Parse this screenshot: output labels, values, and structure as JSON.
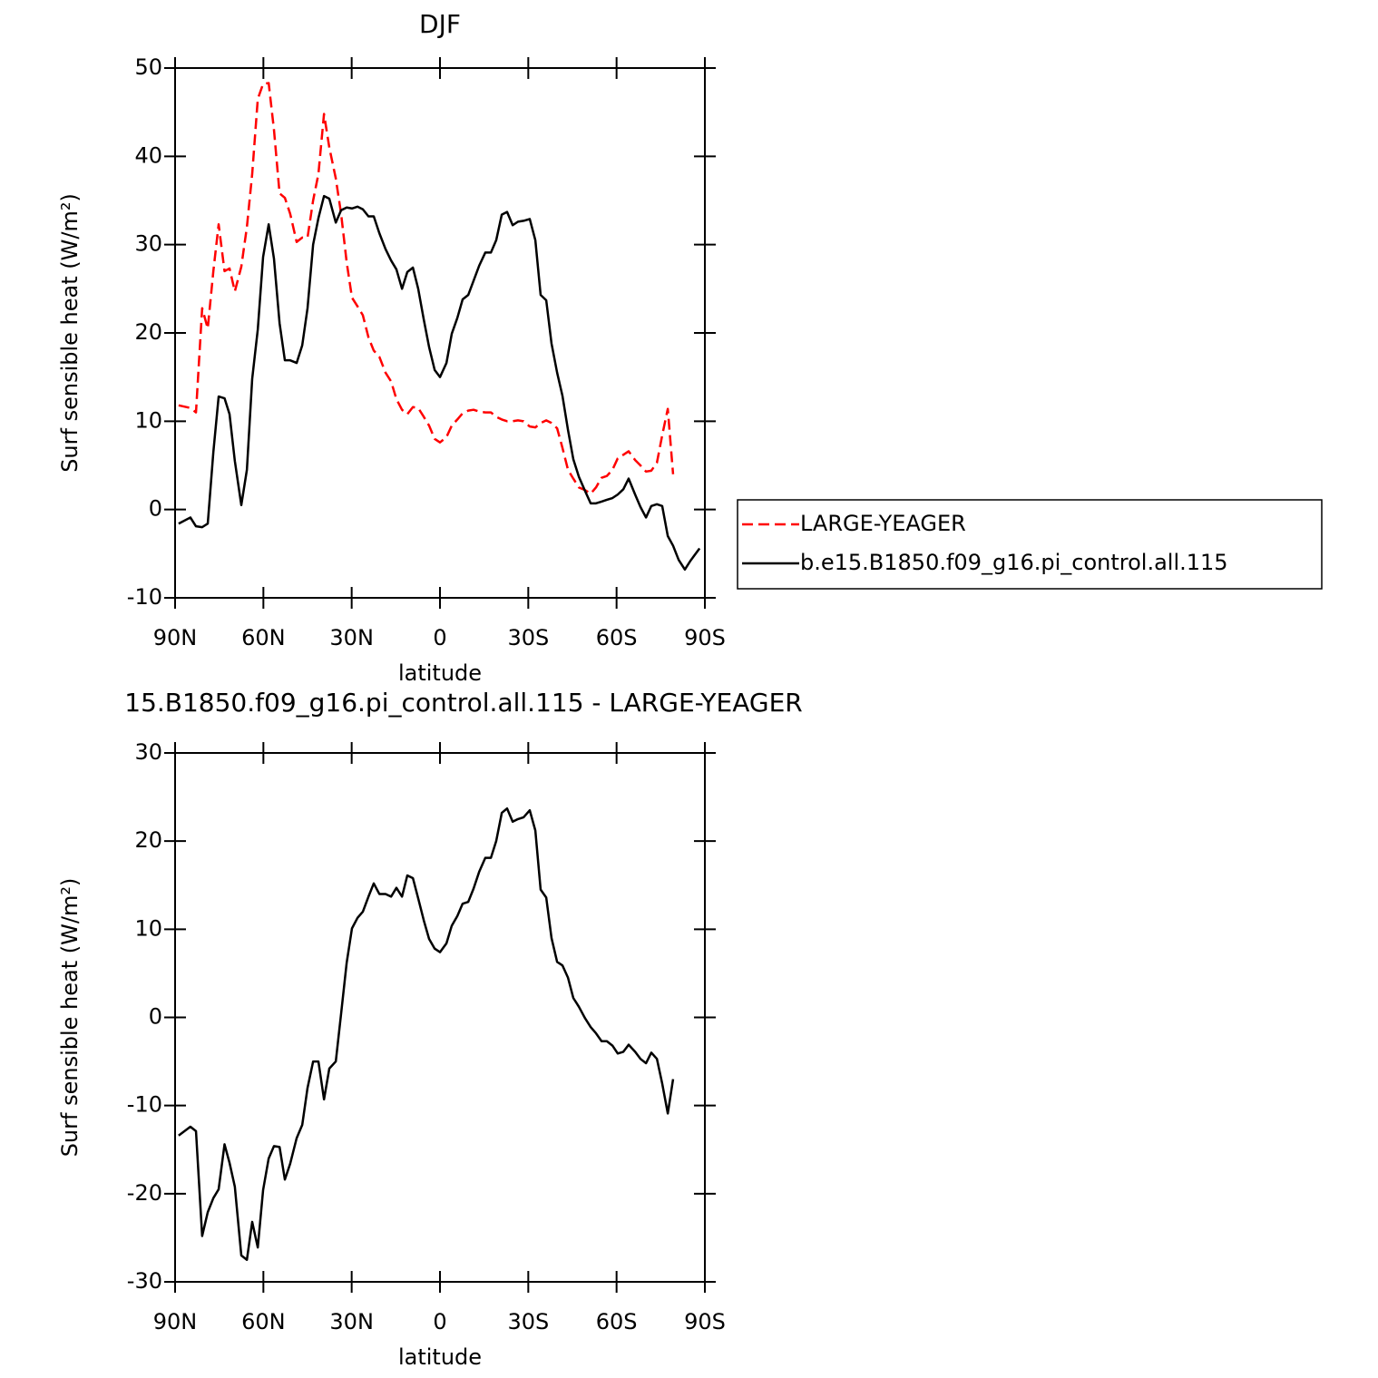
{
  "chart_data": [
    {
      "type": "line",
      "title": "DJF",
      "xlabel": "latitude",
      "ylabel": "Surf sensible heat (W/m²)",
      "x": [
        88.8,
        84.8,
        82.9,
        80.8,
        78.9,
        77,
        75.2,
        73.2,
        71.5,
        69.7,
        67.5,
        65.6,
        63.8,
        61.9,
        60.1,
        58.2,
        56.4,
        54.5,
        52.7,
        50.9,
        48.7,
        46.8,
        45,
        43.1,
        41.3,
        39.4,
        37.6,
        35.4,
        33.6,
        31.7,
        29.9,
        28,
        26.2,
        24.3,
        22.5,
        20.6,
        18.5,
        16.6,
        14.8,
        12.9,
        11.1,
        9.2,
        7.4,
        5.5,
        3.7,
        1.8,
        0,
        -2.2,
        -4,
        -5.9,
        -7.7,
        -9.6,
        -11.4,
        -13.3,
        -15.4,
        -17.3,
        -19.1,
        -21,
        -22.8,
        -24.7,
        -26.5,
        -28.4,
        -30.5,
        -32.4,
        -34.2,
        -36.1,
        -37.9,
        -39.8,
        -41.6,
        -43.5,
        -45.3,
        -47.2,
        -49.3,
        -51.2,
        -53,
        -54.9,
        -56.7,
        -58.6,
        -60.4,
        -62.3,
        -64.1,
        -66.3,
        -68.1,
        -70,
        -71.8,
        -73.7,
        -75.5,
        -77.4,
        -79.2,
        -81.1,
        -83.2,
        -85.1,
        -88.2
      ],
      "xlim": [
        90,
        -90
      ],
      "xticks": [
        {
          "value": 90,
          "label": "90N"
        },
        {
          "value": 60,
          "label": "60N"
        },
        {
          "value": 30,
          "label": "30N"
        },
        0,
        {
          "value": -30,
          "label": "30S"
        },
        {
          "value": -60,
          "label": "60S"
        },
        {
          "value": -90,
          "label": "90S"
        }
      ],
      "ylim": [
        -10,
        50
      ],
      "yticks": [
        -10,
        0,
        10,
        20,
        30,
        40,
        50
      ],
      "legend": "right",
      "series": [
        {
          "name": "LARGE-YEAGER",
          "color": "#ff0000",
          "style": "dashed",
          "values": [
            11.8,
            11.5,
            11.0,
            22.8,
            20.5,
            27,
            32.3,
            27,
            27.3,
            24.7,
            27.5,
            32,
            38,
            46.5,
            48.2,
            48.3,
            43,
            35.8,
            35.3,
            33.5,
            30.3,
            30.8,
            30.8,
            35,
            38,
            44.8,
            41,
            37.5,
            33.5,
            28,
            24,
            23,
            22,
            19.5,
            18,
            17.3,
            15.5,
            14.5,
            12.5,
            11.3,
            10.8,
            11.6,
            11.5,
            10.5,
            9.5,
            8,
            7.6,
            8.2,
            9.5,
            10.2,
            10.9,
            11.2,
            11.3,
            11.1,
            11.0,
            11.0,
            10.5,
            10.2,
            10.0,
            10.0,
            10.1,
            10.0,
            9.4,
            9.3,
            9.8,
            10.1,
            9.8,
            9.2,
            7.0,
            4.5,
            3.5,
            2.5,
            2.2,
            1.8,
            2.5,
            3.6,
            3.8,
            4.5,
            5.8,
            6.2,
            6.6,
            5.6,
            5.0,
            4.3,
            4.4,
            5.3,
            8.4,
            11.4,
            4.0,
            null,
            null,
            null,
            null
          ]
        },
        {
          "name": "b.e15.B1850.f09_g16.pi_control.all.115",
          "color": "#000000",
          "style": "solid",
          "values": [
            -1.6,
            -0.9,
            -1.9,
            -2.0,
            -1.6,
            6.5,
            12.8,
            12.6,
            10.8,
            5.5,
            0.5,
            4.5,
            14.8,
            20.4,
            28.6,
            32.3,
            28.4,
            21.1,
            16.9,
            16.9,
            16.6,
            18.6,
            22.8,
            30.0,
            33.0,
            35.5,
            35.2,
            32.5,
            33.9,
            34.2,
            34.1,
            34.3,
            34.0,
            33.2,
            33.2,
            31.3,
            29.5,
            28.2,
            27.2,
            25.0,
            26.9,
            27.4,
            25.0,
            21.5,
            18.4,
            15.8,
            15.0,
            16.6,
            19.9,
            21.7,
            23.8,
            24.3,
            25.9,
            27.6,
            29.1,
            29.1,
            30.5,
            33.4,
            33.7,
            32.2,
            32.6,
            32.7,
            32.9,
            30.5,
            24.3,
            23.7,
            18.8,
            15.5,
            12.9,
            9.0,
            5.7,
            3.7,
            2.1,
            0.7,
            0.7,
            0.9,
            1.1,
            1.3,
            1.7,
            2.3,
            3.5,
            1.7,
            0.3,
            -0.9,
            0.4,
            0.6,
            0.4,
            -3.0,
            -4.1,
            -5.7,
            -6.8,
            -5.8,
            -4.4
          ]
        }
      ]
    },
    {
      "type": "line",
      "title": "15.B1850.f09_g16.pi_control.all.115 - LARGE-YEAGER",
      "xlabel": "latitude",
      "ylabel": "Surf sensible heat (W/m²)",
      "x": [
        88.8,
        84.8,
        82.9,
        80.8,
        78.9,
        77,
        75.2,
        73.2,
        71.5,
        69.7,
        67.5,
        65.6,
        63.8,
        61.9,
        60.1,
        58.2,
        56.4,
        54.5,
        52.7,
        50.9,
        48.7,
        46.8,
        45,
        43.1,
        41.3,
        39.4,
        37.6,
        35.4,
        33.6,
        31.7,
        29.9,
        28,
        26.2,
        24.3,
        22.5,
        20.6,
        18.5,
        16.6,
        14.8,
        12.9,
        11.1,
        9.2,
        7.4,
        5.5,
        3.7,
        1.8,
        0,
        -2.2,
        -4,
        -5.9,
        -7.7,
        -9.6,
        -11.4,
        -13.3,
        -15.4,
        -17.3,
        -19.1,
        -21,
        -22.8,
        -24.7,
        -26.5,
        -28.4,
        -30.5,
        -32.4,
        -34.2,
        -36.1,
        -37.9,
        -39.8,
        -41.6,
        -43.5,
        -45.3,
        -47.2,
        -49.3,
        -51.2,
        -53,
        -54.9,
        -56.7,
        -58.6,
        -60.4,
        -62.3,
        -64.1,
        -66.3,
        -68.1,
        -70,
        -71.8,
        -73.7,
        -75.5,
        -77.4,
        -79.2,
        -81.1,
        -83.2,
        -85.1,
        -88.2
      ],
      "xlim": [
        90,
        -90
      ],
      "xticks": [
        {
          "value": 90,
          "label": "90N"
        },
        {
          "value": 60,
          "label": "60N"
        },
        {
          "value": 30,
          "label": "30N"
        },
        0,
        {
          "value": -30,
          "label": "30S"
        },
        {
          "value": -60,
          "label": "60S"
        },
        {
          "value": -90,
          "label": "90S"
        }
      ],
      "ylim": [
        -30,
        30
      ],
      "yticks": [
        -30,
        -20,
        -10,
        0,
        10,
        20,
        30
      ],
      "series": [
        {
          "color": "#000000",
          "style": "solid",
          "values": [
            -13.4,
            -12.4,
            -12.9,
            -24.8,
            -22.1,
            -20.5,
            -19.5,
            -14.4,
            -16.5,
            -19.2,
            -27.0,
            -27.5,
            -23.2,
            -26.1,
            -19.6,
            -16.0,
            -14.6,
            -14.7,
            -18.4,
            -16.6,
            -13.7,
            -12.2,
            -8.0,
            -5.0,
            -5.0,
            -9.3,
            -5.8,
            -5.0,
            0.4,
            6.2,
            10.1,
            11.3,
            12.0,
            13.7,
            15.2,
            14.0,
            14.0,
            13.7,
            14.7,
            13.7,
            16.1,
            15.8,
            13.5,
            11.0,
            8.9,
            7.8,
            7.4,
            8.4,
            10.4,
            11.5,
            12.9,
            13.1,
            14.6,
            16.5,
            18.1,
            18.1,
            20.0,
            23.2,
            23.7,
            22.2,
            22.5,
            22.7,
            23.5,
            21.2,
            14.5,
            13.6,
            9.0,
            6.3,
            5.9,
            4.5,
            2.2,
            1.2,
            -0.1,
            -1.1,
            -1.8,
            -2.7,
            -2.7,
            -3.2,
            -4.1,
            -3.9,
            -3.1,
            -3.9,
            -4.7,
            -5.2,
            -4.0,
            -4.7,
            -7.5,
            -10.9,
            -7.0,
            null,
            null,
            null,
            null
          ]
        }
      ]
    }
  ]
}
